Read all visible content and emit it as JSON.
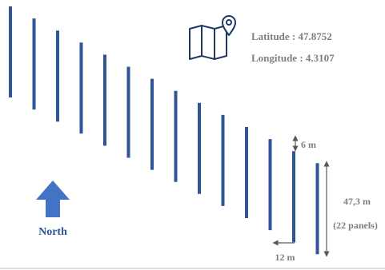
{
  "location": {
    "latitude_text": "Latitude : 47.8752",
    "longitude_text": "Longitude : 4.3107"
  },
  "icons": {
    "map": "map-pin-icon",
    "north": "north-arrow-icon"
  },
  "north_label": "North",
  "dimensions": {
    "row_spacing": "6 m",
    "row_offset": "12 m",
    "row_length": "47,3 m",
    "row_panels": "(22 panels)"
  },
  "colors": {
    "rows": "#2f5597",
    "north_arrow": "#4472c4",
    "north_text": "#2f5597",
    "icon": "#203864",
    "text": "#7f7f7f",
    "dimension_lines": "#595959",
    "ground_line": "#bfbfbf"
  },
  "rows_count": 14
}
